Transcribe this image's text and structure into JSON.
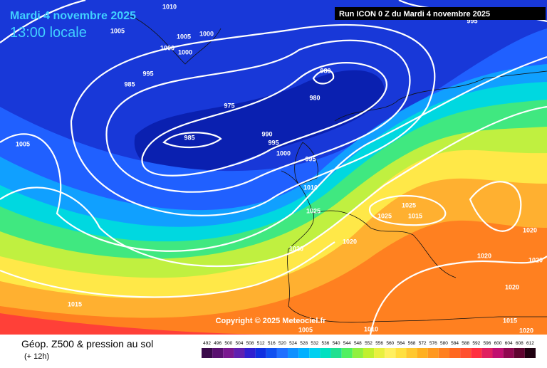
{
  "header": {
    "date": "Mardi 4 novembre 2025",
    "time": "13:00 locale",
    "run": "Run ICON 0 Z du Mardi 4 novembre 2025"
  },
  "map": {
    "isobar_labels": [
      1010,
      1005,
      1000,
      1000,
      1005,
      1000,
      995,
      985,
      975,
      980,
      980,
      985,
      990,
      995,
      1000,
      995,
      1005,
      1010,
      1025,
      1025,
      1025,
      1015,
      1020,
      1020,
      1020,
      1020,
      1020,
      1020,
      1015,
      1015,
      1020,
      1010,
      1005,
      995
    ],
    "copyright": "Copyright © 2025 Meteociel.fr"
  },
  "footer": {
    "title": "Géop. Z500 & pression au sol",
    "subtitle": "(+ 12h)",
    "scale": [
      492,
      496,
      500,
      504,
      508,
      512,
      516,
      520,
      524,
      528,
      532,
      536,
      540,
      544,
      548,
      552,
      556,
      560,
      564,
      568,
      572,
      576,
      580,
      584,
      588,
      592,
      596,
      600,
      604,
      608,
      612
    ],
    "scale_colors": [
      "#3a0a4a",
      "#5a1070",
      "#7a1890",
      "#6020b0",
      "#3020d0",
      "#1030e0",
      "#1050f0",
      "#2070ff",
      "#1090ff",
      "#00b0ff",
      "#00d0f0",
      "#00e0c0",
      "#20e090",
      "#50f060",
      "#90f040",
      "#c0f030",
      "#e8f040",
      "#fff060",
      "#ffe040",
      "#ffc830",
      "#ffb020",
      "#ff9820",
      "#ff8020",
      "#ff6820",
      "#ff5030",
      "#ff3040",
      "#e02060",
      "#c01070",
      "#900850",
      "#600430",
      "#200010"
    ]
  }
}
